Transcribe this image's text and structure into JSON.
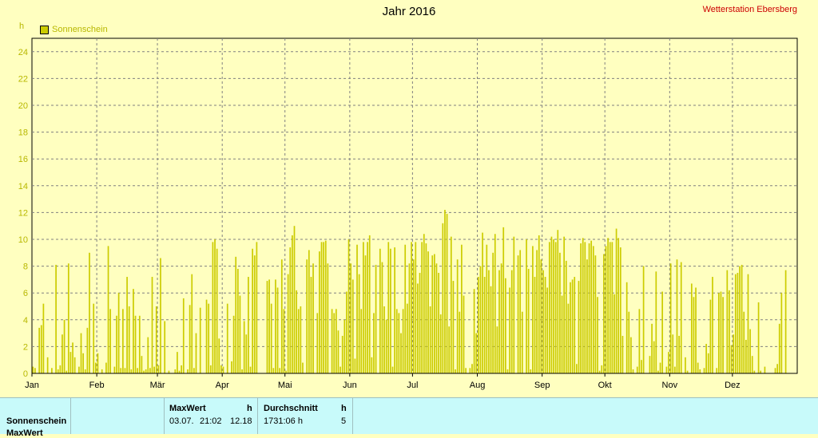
{
  "header": {
    "title": "Jahr 2016",
    "station": "Wetterstation Ebersberg",
    "unit": "h",
    "legend": "Sonnenschein"
  },
  "colors": {
    "background": "#ffffc0",
    "bar": "#cccc00",
    "grid": "#808080",
    "axis_text": "#b8b800",
    "station": "#cc0000",
    "table_bg": "#c8fafa"
  },
  "chart_data": {
    "type": "bar",
    "title": "Jahr 2016",
    "ylabel": "h",
    "ylim": [
      0,
      25
    ],
    "yticks": [
      0,
      2,
      4,
      6,
      8,
      10,
      12,
      14,
      16,
      18,
      20,
      22,
      24
    ],
    "months": [
      "Jan",
      "Feb",
      "Mär",
      "Apr",
      "Mai",
      "Jun",
      "Jul",
      "Aug",
      "Sep",
      "Okt",
      "Nov",
      "Dez"
    ],
    "month_days": [
      31,
      29,
      31,
      30,
      31,
      30,
      31,
      31,
      30,
      31,
      30,
      31
    ],
    "grid": true,
    "legend_position": "top-left",
    "series": [
      {
        "name": "Sonnenschein",
        "values": [
          0.5,
          0.4,
          0,
          3.4,
          3.6,
          5.2,
          0,
          1.2,
          0,
          0.4,
          0,
          8.1,
          0.3,
          0.6,
          2.9,
          4,
          0.2,
          8.2,
          1.6,
          2.3,
          1.2,
          0,
          0.5,
          3,
          1.5,
          0.3,
          3.4,
          9,
          0,
          5.2,
          0.8,
          1.5,
          0,
          0.3,
          0,
          0.8,
          9.5,
          4.8,
          0,
          0.5,
          4.3,
          6,
          0.4,
          4.8,
          0.4,
          7.2,
          5,
          0.3,
          6.3,
          4.3,
          0.4,
          4.3,
          1.3,
          0.2,
          0.3,
          2.7,
          0.4,
          7.2,
          0.5,
          5,
          0.6,
          8.6,
          0,
          3.9,
          0,
          0.2,
          0,
          0,
          0.3,
          1.6,
          0.2,
          0.6,
          5.6,
          0,
          0.3,
          5.1,
          7.4,
          0.4,
          3,
          0,
          4.9,
          0,
          0,
          5.5,
          5.2,
          0.6,
          9.8,
          10,
          9.3,
          2.6,
          0.6,
          0.5,
          0,
          5.2,
          0,
          0.9,
          4.3,
          8.7,
          7.8,
          5.8,
          0.3,
          3.9,
          2.9,
          7.2,
          0.5,
          9.3,
          8.8,
          9.8,
          0,
          0,
          0,
          0,
          6.9,
          7,
          5.2,
          0.4,
          7,
          6.4,
          0.4,
          8.5,
          4.8,
          0.2,
          7.4,
          9.4,
          10.3,
          11,
          6.2,
          4.8,
          5,
          0.8,
          0,
          8.5,
          9.2,
          7.2,
          8.2,
          0,
          4.5,
          9.1,
          9.8,
          9.8,
          9.9,
          8.2,
          0,
          4.8,
          4.5,
          4.8,
          3.2,
          0.5,
          2.8,
          4,
          6.1,
          10,
          8.2,
          7,
          1.1,
          9.6,
          7.4,
          4.8,
          9.8,
          8.8,
          9.8,
          10.3,
          1.2,
          4.5,
          8.1,
          0,
          9.3,
          8.3,
          5,
          4,
          9.8,
          9.3,
          0.5,
          9.4,
          4.8,
          4.5,
          3,
          4.8,
          9.6,
          5.2,
          8.2,
          9.8,
          8.5,
          9.8,
          6.7,
          7.5,
          9.8,
          10.4,
          9.7,
          9.1,
          5,
          8.8,
          8.9,
          8.2,
          7.5,
          4.4,
          11.2,
          12.2,
          11.9,
          3.5,
          10.2,
          6.9,
          0.3,
          8.5,
          4.6,
          9.6,
          5.8,
          0.4,
          0,
          0.4,
          0.7,
          6.3,
          3,
          7.2,
          8,
          10.5,
          7.2,
          9.6,
          7.7,
          6.5,
          9,
          10.4,
          3.5,
          7.7,
          8.2,
          10.9,
          7.1,
          0.3,
          6.4,
          7.7,
          10.2,
          0,
          8.8,
          9.2,
          4.6,
          0,
          10,
          7.8,
          0.3,
          9.5,
          7.2,
          9.2,
          10.3,
          8.5,
          7.7,
          7.2,
          6.4,
          9.8,
          10.2,
          10,
          9.8,
          10.7,
          9,
          5.8,
          10.2,
          8.4,
          5.2,
          6.8,
          7,
          7.2,
          0.7,
          6.9,
          9.7,
          10.1,
          9.8,
          8.5,
          9.7,
          9.9,
          9.5,
          8.8,
          5.7,
          0.2,
          0.6,
          8.9,
          9.5,
          10.1,
          9.8,
          9.8,
          5.9,
          10.8,
          10.1,
          9.4,
          2.8,
          0,
          6.8,
          4.6,
          2.7,
          0.3,
          0,
          0.5,
          4.8,
          1,
          8,
          0,
          0,
          1.3,
          3.7,
          2.4,
          7.6,
          0.2,
          0.8,
          6.1,
          0,
          0.5,
          1.6,
          8.2,
          2.9,
          0.5,
          8.5,
          2.8,
          8.3,
          0,
          1.2,
          0.2,
          0,
          6.7,
          5.7,
          6.4,
          0.8,
          0.3,
          0,
          0.4,
          2.2,
          1.5,
          5.5,
          7.2,
          0,
          0.4,
          6,
          6.1,
          5.7,
          0,
          7.7,
          6.2,
          2.1,
          2.9,
          7.4,
          7.5,
          8,
          8.1,
          4.6,
          2.5,
          7.4,
          3.3,
          1.3,
          0.2,
          0,
          5.3,
          0.2,
          0,
          0.5,
          0,
          0,
          0,
          0,
          0.4,
          0.7,
          3.7,
          6,
          0,
          7.7
        ]
      }
    ]
  },
  "table": {
    "label_col": "Sonnenschein",
    "label_col2": "MaxWert",
    "max_header": "MaxWert",
    "max_unit": "h",
    "max_date": "03.07.",
    "max_time": "21:02",
    "max_value": "12.18",
    "avg_header": "Durchschnitt",
    "avg_unit": "h",
    "avg_value": "1731:06 h",
    "avg_count": "5"
  }
}
